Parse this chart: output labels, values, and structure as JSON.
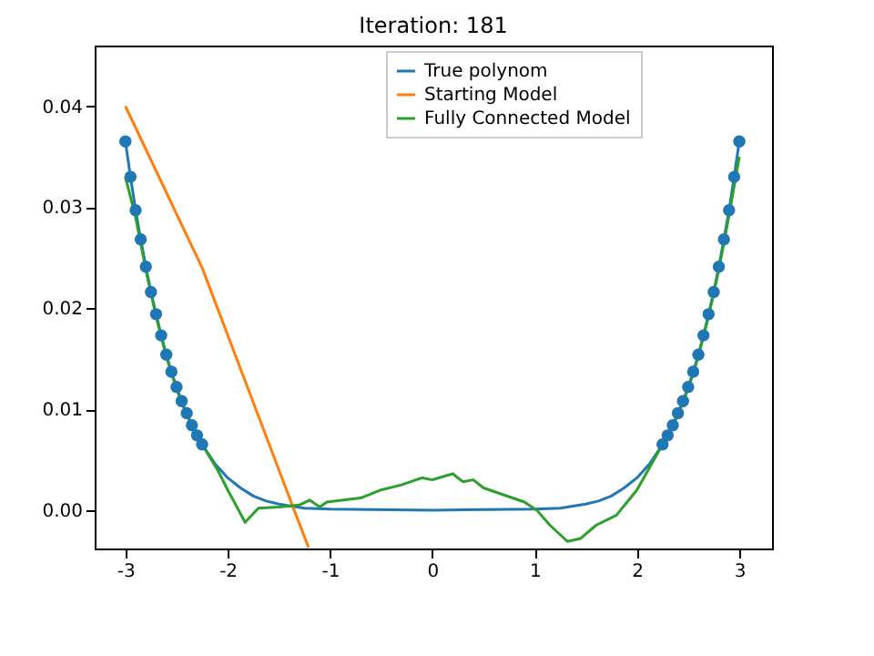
{
  "chart_data": {
    "type": "line",
    "title": "Iteration: 181",
    "xlim": [
      -3.3,
      3.32
    ],
    "ylim": [
      -0.0038,
      0.046
    ],
    "xticks": [
      -3,
      -2,
      -1,
      0,
      1,
      2,
      3
    ],
    "yticks": [
      {
        "value": 0,
        "label": "0.00"
      },
      {
        "value": 0.01,
        "label": "0.01"
      },
      {
        "value": 0.02,
        "label": "0.02"
      },
      {
        "value": 0.03,
        "label": "0.03"
      },
      {
        "value": 0.04,
        "label": "0.04"
      }
    ],
    "grid": false,
    "legend": "top right",
    "series": [
      {
        "name": "True polynom",
        "color": "#1f77b4",
        "x": [
          -3,
          -2.95,
          -2.9,
          -2.85,
          -2.8,
          -2.75,
          -2.7,
          -2.65,
          -2.6,
          -2.55,
          -2.5,
          -2.45,
          -2.4,
          -2.35,
          -2.3,
          -2.25,
          -2.125,
          -2,
          -1.875,
          -1.75,
          -1.625,
          -1.5,
          -1.25,
          -1,
          0,
          1,
          1.25,
          1.5,
          1.625,
          1.75,
          1.875,
          2,
          2.125,
          2.25,
          2.3,
          2.35,
          2.4,
          2.45,
          2.5,
          2.55,
          2.6,
          2.65,
          2.7,
          2.75,
          2.8,
          2.85,
          2.9,
          2.95,
          3
        ],
        "values": [
          0.0365,
          0.033,
          0.0297,
          0.0268,
          0.0241,
          0.0216,
          0.0194,
          0.0173,
          0.0154,
          0.0137,
          0.0122,
          0.0108,
          0.0096,
          0.0084,
          0.0074,
          0.0065,
          0.0046,
          0.0032,
          0.0022,
          0.0014,
          0.0009,
          0.0006,
          0.0002,
          0.0001,
          0,
          0.0001,
          0.0002,
          0.0006,
          0.0009,
          0.0014,
          0.0022,
          0.0032,
          0.0046,
          0.0065,
          0.0074,
          0.0084,
          0.0096,
          0.0108,
          0.0122,
          0.0137,
          0.0154,
          0.0173,
          0.0194,
          0.0216,
          0.0241,
          0.0268,
          0.0297,
          0.033,
          0.0365
        ]
      },
      {
        "name": "Starting Model",
        "color": "#ff7f0e",
        "x": [
          -3,
          -2.25,
          -1.35,
          -1.21
        ],
        "values": [
          0.04,
          0.024,
          0,
          -0.0037
        ]
      },
      {
        "name": "Fully Connected Model",
        "color": "#2ca02c",
        "x": [
          -3,
          -2.9,
          -2.8,
          -2.7,
          -2.6,
          -2.5,
          -2.4,
          -2.3,
          -2.25,
          -2.1,
          -2.0,
          -1.83,
          -1.7,
          -1.5,
          -1.3,
          -1.2,
          -1.1,
          -1.03,
          -0.7,
          -0.5,
          -0.3,
          -0.1,
          0,
          0.1,
          0.2,
          0.3,
          0.4,
          0.5,
          0.7,
          0.9,
          1.02,
          1.15,
          1.32,
          1.45,
          1.6,
          1.8,
          2.0,
          2.25,
          2.3,
          2.4,
          2.5,
          2.6,
          2.7,
          2.8,
          2.9,
          3
        ],
        "values": [
          0.033,
          0.029,
          0.0238,
          0.0192,
          0.0152,
          0.012,
          0.0094,
          0.0073,
          0.0065,
          0.004,
          0.002,
          -0.0012,
          0.0002,
          0.0003,
          0.0005,
          0.001,
          0.0003,
          0.0008,
          0.0012,
          0.002,
          0.0025,
          0.0032,
          0.003,
          0.0033,
          0.0036,
          0.0028,
          0.003,
          0.0022,
          0.0015,
          0.0008,
          0,
          -0.0015,
          -0.0031,
          -0.0028,
          -0.0015,
          -0.0005,
          0.002,
          0.0065,
          0.0073,
          0.0094,
          0.012,
          0.0152,
          0.0192,
          0.0238,
          0.0292,
          0.035
        ]
      },
      {
        "type": "scatter",
        "marker": "circle",
        "color": "#1f77b4",
        "x": [
          -3,
          -2.95,
          -2.9,
          -2.85,
          -2.8,
          -2.75,
          -2.7,
          -2.65,
          -2.6,
          -2.55,
          -2.5,
          -2.45,
          -2.4,
          -2.35,
          -2.3,
          -2.25,
          2.25,
          2.3,
          2.35,
          2.4,
          2.45,
          2.5,
          2.55,
          2.6,
          2.65,
          2.7,
          2.75,
          2.8,
          2.85,
          2.9,
          2.95,
          3
        ],
        "values": [
          0.0365,
          0.033,
          0.0297,
          0.0268,
          0.0241,
          0.0216,
          0.0194,
          0.0173,
          0.0154,
          0.0137,
          0.0122,
          0.0108,
          0.0096,
          0.0084,
          0.0074,
          0.0065,
          0.0065,
          0.0074,
          0.0084,
          0.0096,
          0.0108,
          0.0122,
          0.0137,
          0.0154,
          0.0173,
          0.0194,
          0.0216,
          0.0241,
          0.0268,
          0.0297,
          0.033,
          0.0365
        ]
      }
    ]
  }
}
